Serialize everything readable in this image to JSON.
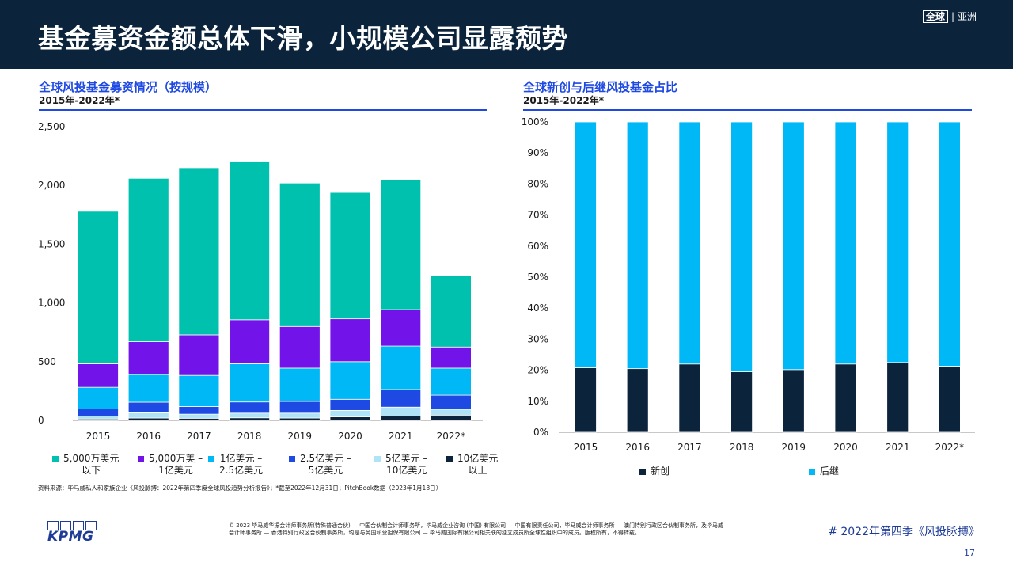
{
  "header": {
    "title": "基金募资金额总体下滑，小规模公司显露颓势",
    "badge_global": "全球",
    "badge_separator": "|",
    "badge_region": "亚洲"
  },
  "left_chart": {
    "title": "全球风投基金募资情况（按规模）",
    "subtitle": "2015年-2022年*"
  },
  "right_chart": {
    "title": "全球新创与后继风投基金占比",
    "subtitle": "2015年-2022年*"
  },
  "chart_data": [
    {
      "type": "bar",
      "stacked": true,
      "categories": [
        "2015",
        "2016",
        "2017",
        "2018",
        "2019",
        "2020",
        "2021",
        "2022*"
      ],
      "ylim": [
        0,
        2500
      ],
      "yticks": [
        0,
        500,
        1000,
        1500,
        2000,
        2500
      ],
      "ytick_labels": [
        "0",
        "500",
        "1,000",
        "1,500",
        "2,000",
        "2,500"
      ],
      "grid": false,
      "legend": "bottom",
      "series": [
        {
          "name": "10亿美元以上",
          "legend_label": "10亿美元\n以上",
          "color": "#0c233c",
          "values": [
            12,
            20,
            18,
            22,
            20,
            30,
            38,
            45
          ]
        },
        {
          "name": "5亿美元 – 10亿美元",
          "legend_label": "5亿美元 –\n10亿美元",
          "color": "#aee4f5",
          "values": [
            25,
            45,
            35,
            40,
            42,
            55,
            75,
            50
          ]
        },
        {
          "name": "2.5亿美元 – 5亿美元",
          "legend_label": "2.5亿美元 –\n5亿美元",
          "color": "#1e49e2",
          "values": [
            60,
            90,
            65,
            95,
            100,
            95,
            150,
            120
          ]
        },
        {
          "name": "1亿美元 – 2.5亿美元",
          "legend_label": "1亿美元 –\n2.5亿美元",
          "color": "#00b8f5",
          "values": [
            185,
            235,
            265,
            325,
            283,
            320,
            370,
            230
          ]
        },
        {
          "name": "5,000万美元 – 1亿美元",
          "legend_label": "5,000万美 –\n1亿美元",
          "color": "#7213ea",
          "values": [
            200,
            280,
            345,
            375,
            355,
            365,
            310,
            180
          ]
        },
        {
          "name": "5,000万美元以下",
          "legend_label": "5,000万美元\n以下",
          "color": "#00c0ae",
          "values": [
            1298,
            1390,
            1422,
            1343,
            1220,
            1075,
            1107,
            605
          ]
        }
      ]
    },
    {
      "type": "bar",
      "stacked": true,
      "percent": true,
      "categories": [
        "2015",
        "2016",
        "2017",
        "2018",
        "2019",
        "2020",
        "2021",
        "2022*"
      ],
      "ylim": [
        0,
        100
      ],
      "yticks": [
        0,
        10,
        20,
        30,
        40,
        50,
        60,
        70,
        80,
        90,
        100
      ],
      "ytick_labels": [
        "0%",
        "10%",
        "20%",
        "30%",
        "40%",
        "50%",
        "60%",
        "70%",
        "80%",
        "90%",
        "100%"
      ],
      "grid": false,
      "legend": "bottom",
      "series": [
        {
          "name": "新创",
          "color": "#0c233c",
          "values": [
            20.8,
            20.5,
            22.0,
            19.5,
            20.2,
            22.0,
            22.5,
            21.3
          ]
        },
        {
          "name": "后继",
          "color": "#00b8f5",
          "values": [
            79.2,
            79.5,
            78.0,
            80.5,
            79.8,
            78.0,
            77.5,
            78.7
          ]
        }
      ]
    }
  ],
  "source": "资料来源：毕马威私人和家族企业《风投脉搏：2022年第四季度全球风投趋势分析报告》；*截至2022年12月31日；PitchBook数据（2023年1月18日）",
  "footer": {
    "logo_text": "KPMG",
    "copyright": "© 2023 毕马威华振会计师事务所(特殊普通合伙) — 中国合伙制会计师事务所，毕马威企业咨询 (中国) 有限公司 — 中国有限责任公司，毕马威会计师事务所 — 澳门特别行政区合伙制事务所，及毕马威会计师事务所 — 香港特别行政区合伙制事务所，均是与英国私营担保有限公司 — 毕马威国际有限公司相关联的独立成员所全球性组织中的成员。版权所有，不得转载。",
    "hashtag": "# 2022年第四季《风投脉搏》",
    "page_number": "17"
  }
}
